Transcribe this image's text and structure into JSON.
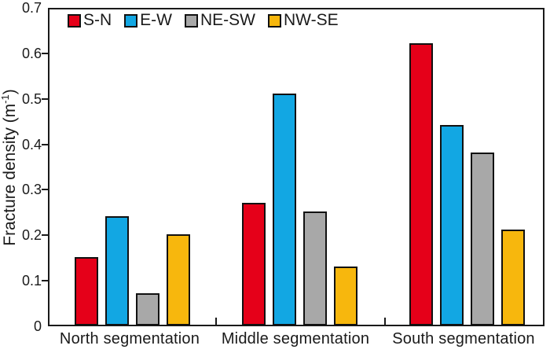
{
  "chart_data": {
    "type": "bar",
    "title": "",
    "ylabel_main": "Fracture density (m",
    "ylabel_sup": "-1",
    "ylabel_close": ")",
    "categories": [
      "North segmentation",
      "Middle segmentation",
      "South segmentation"
    ],
    "series": [
      {
        "name": "S-N",
        "color": "#e50019",
        "values": [
          0.15,
          0.27,
          0.62
        ]
      },
      {
        "name": "E-W",
        "color": "#12a7e3",
        "values": [
          0.24,
          0.51,
          0.44
        ]
      },
      {
        "name": "NE-SW",
        "color": "#a8a8a8",
        "values": [
          0.07,
          0.25,
          0.38
        ]
      },
      {
        "name": "NW-SE",
        "color": "#f7b70d",
        "values": [
          0.2,
          0.13,
          0.21
        ]
      }
    ],
    "yticks": [
      {
        "label": "0",
        "value": 0.0
      },
      {
        "label": "0.1",
        "value": 0.1
      },
      {
        "label": "0.2",
        "value": 0.2
      },
      {
        "label": "0.3",
        "value": 0.3
      },
      {
        "label": "0.4",
        "value": 0.4
      },
      {
        "label": "0.5",
        "value": 0.5
      },
      {
        "label": "0.6",
        "value": 0.6
      },
      {
        "label": "0.7",
        "value": 0.7
      }
    ],
    "ylim": [
      0,
      0.7
    ],
    "legend_position": "top-inside",
    "grid": false,
    "axis_color": "#1a1a1a"
  }
}
